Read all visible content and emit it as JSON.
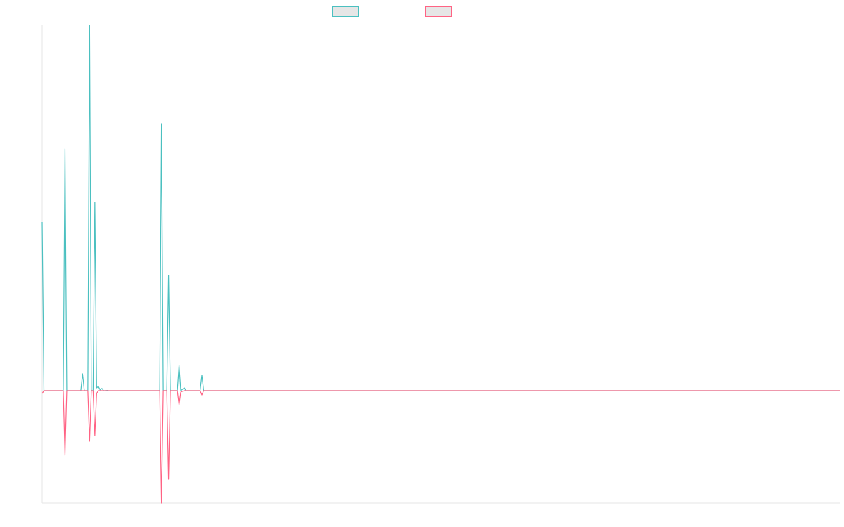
{
  "chart_data": {
    "type": "line",
    "title": "",
    "xlabel": "",
    "ylabel": "",
    "grid": false,
    "legend_placement": "top-center",
    "series": [
      {
        "label": "",
        "color": "#4bc0c0",
        "values": [
          0.6,
          0,
          0,
          0,
          0,
          0,
          0,
          0,
          0,
          0,
          0,
          0,
          0,
          0.86,
          0,
          0,
          0,
          0,
          0,
          0,
          0,
          0,
          0,
          0.06,
          0,
          0,
          0,
          1.3,
          0,
          0,
          0.67,
          0.01,
          0.015,
          0.003,
          0.008,
          0,
          0,
          0.001,
          0,
          0,
          0,
          0,
          0,
          0,
          0,
          0,
          0,
          0,
          0,
          0,
          0,
          0,
          0,
          0,
          0,
          0,
          0,
          0,
          0,
          0,
          0,
          0,
          0,
          0,
          0,
          0,
          0,
          0,
          0.95,
          0,
          0,
          0,
          0.41,
          0,
          0,
          0,
          0,
          0,
          0.09,
          0,
          0.005,
          0.01,
          0,
          0,
          0,
          0,
          0,
          0,
          0,
          0,
          0,
          0.055,
          0
        ]
      },
      {
        "label": "",
        "color": "#ff6384",
        "values": [
          -0.01,
          0,
          0,
          0,
          0,
          0,
          0,
          0,
          0,
          0,
          0,
          0,
          0,
          -0.23,
          0,
          0,
          0,
          0,
          0,
          0,
          0,
          0,
          0,
          0,
          0,
          0,
          0,
          -0.18,
          0,
          0,
          -0.16,
          -0.01,
          0,
          0,
          0,
          0,
          0,
          0,
          0,
          0,
          0,
          0,
          0,
          0,
          0,
          0,
          0,
          0,
          0,
          0,
          0,
          0,
          0,
          0,
          0,
          0,
          0,
          0,
          0,
          0,
          0,
          0,
          0,
          0,
          0,
          0,
          0,
          0,
          -0.4,
          0,
          0,
          0,
          -0.315,
          0,
          0,
          0,
          0,
          0,
          -0.05,
          -0.005,
          -0.002,
          0,
          0,
          0,
          0,
          0,
          0,
          0,
          0,
          0,
          0,
          -0.015,
          0
        ]
      }
    ],
    "n_points": 456,
    "ylim": [
      -0.4,
      1.3
    ]
  }
}
